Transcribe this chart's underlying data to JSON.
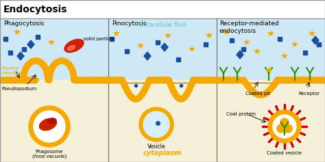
{
  "title": "Endocytosis",
  "section1_title": "Phagocytosis",
  "section2_title": "Pinocytosis",
  "section3_title": "Receptor-mediated\nendocytosis",
  "extracellular_label": "Extracellular fluid",
  "cytoplasm_label": "cytoplasm",
  "plasma_membrane_label": "Plasma\nmembrane",
  "pseudopodium_label": "Pseudopodium",
  "solid_particle_label": "solid particle",
  "phagosome_label": "Phagosome\n(food vacuole)",
  "vesicle_label": "Vesicle",
  "coated_pit_label": "Coated pit",
  "receptor_label": "Receptor",
  "coat_protein_label": "Coat protein",
  "coated_vesicle_label": "Coated vesicle",
  "bg_top": "#cfe8f5",
  "bg_bottom": "#f5f0d8",
  "membrane_color": "#f5a800",
  "membrane_dark": "#c47a00",
  "title_bg": "#ffffff",
  "divider_color": "#666666",
  "star_color": "#f5a800",
  "square_color": "#1a4fa0",
  "particle_color": "#cc2200",
  "receptor_color": "#2a8c00",
  "red_outer_color": "#cc0000",
  "fig_width": 4.74,
  "fig_height": 2.37,
  "dpi": 100
}
